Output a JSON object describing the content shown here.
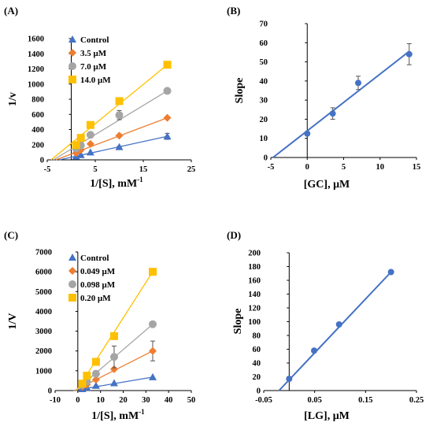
{
  "colors": {
    "control": "#4472C4",
    "orange": "#ED7D31",
    "gray": "#A5A5A5",
    "gold": "#FFC000",
    "slope": "#4472C4",
    "axis": "#000000"
  },
  "chart_data": [
    {
      "panel": "(A)",
      "type": "line",
      "xlabel": "1/[S], mM",
      "xlabel_sup": "-1",
      "ylabel": "1/v",
      "xlim": [
        -5,
        25
      ],
      "ylim": [
        0,
        1600
      ],
      "xticks": [
        -5,
        5,
        15,
        25
      ],
      "xtick_labels": [
        "-5",
        "5",
        "15",
        "25"
      ],
      "yticks": [
        0,
        200,
        400,
        600,
        800,
        1000,
        1200,
        1400,
        1600
      ],
      "ytick_labels": [
        "0",
        "200",
        "400",
        "600",
        "800",
        "1000",
        "1200",
        "1400",
        "1600"
      ],
      "legend_position": "top-left",
      "series": [
        {
          "name": "Control",
          "color": "control",
          "marker": "triangle",
          "points": [
            [
              1,
              45
            ],
            [
              2,
              65
            ],
            [
              4,
              100
            ],
            [
              10,
              170
            ],
            [
              20,
              310
            ]
          ],
          "errors": [
            0,
            0,
            0,
            10,
            40
          ],
          "line": [
            [
              -2.5,
              0
            ],
            [
              20,
              310
            ]
          ]
        },
        {
          "name": "3.5 μM",
          "color": "orange",
          "marker": "diamond",
          "points": [
            [
              1,
              90
            ],
            [
              2,
              130
            ],
            [
              4,
              210
            ],
            [
              10,
              320
            ],
            [
              20,
              555
            ]
          ],
          "errors": [
            0,
            0,
            0,
            0,
            0
          ],
          "line": [
            [
              -3.2,
              0
            ],
            [
              20,
              555
            ]
          ]
        },
        {
          "name": "7.0 μM",
          "color": "gray",
          "marker": "circle",
          "points": [
            [
              1,
              150
            ],
            [
              2,
              190
            ],
            [
              4,
              330
            ],
            [
              10,
              590
            ],
            [
              20,
              910
            ]
          ],
          "errors": [
            0,
            0,
            0,
            60,
            0
          ],
          "line": [
            [
              -3.7,
              0
            ],
            [
              20,
              910
            ]
          ]
        },
        {
          "name": "14.0 μM",
          "color": "gold",
          "marker": "square",
          "points": [
            [
              1,
              195
            ],
            [
              2,
              290
            ],
            [
              4,
              460
            ],
            [
              10,
              775
            ],
            [
              20,
              1255
            ]
          ],
          "errors": [
            0,
            0,
            0,
            0,
            0
          ],
          "line": [
            [
              -4.2,
              0
            ],
            [
              20,
              1255
            ]
          ]
        }
      ]
    },
    {
      "panel": "(B)",
      "type": "scatter",
      "xlabel": "[GC], μM",
      "ylabel": "Slope",
      "xlim": [
        -5,
        15
      ],
      "ylim": [
        0,
        70
      ],
      "xticks": [
        -5,
        0,
        5,
        10,
        15
      ],
      "xtick_labels": [
        "-5",
        "0",
        "5",
        "10",
        "15"
      ],
      "yticks": [
        0,
        10,
        20,
        30,
        40,
        50,
        60,
        70
      ],
      "ytick_labels": [
        "0",
        "10",
        "20",
        "30",
        "40",
        "50",
        "60",
        "70"
      ],
      "series": [
        {
          "color": "slope",
          "marker": "circle",
          "points": [
            [
              0,
              12.5
            ],
            [
              3.5,
              23
            ],
            [
              7,
              39
            ],
            [
              14,
              54
            ]
          ],
          "errors": [
            1,
            3,
            3.5,
            5.5
          ],
          "line": [
            [
              -4.7,
              0
            ],
            [
              14,
              55.5
            ]
          ]
        }
      ]
    },
    {
      "panel": "(C)",
      "type": "line",
      "xlabel": "1/[S], mM",
      "xlabel_sup": "-1",
      "ylabel": "1/V",
      "xlim": [
        -10,
        50
      ],
      "ylim": [
        0,
        7000
      ],
      "xticks": [
        -10,
        0,
        10,
        20,
        30,
        40,
        50
      ],
      "xtick_labels": [
        "-10",
        "0",
        "10",
        "20",
        "30",
        "40",
        "50"
      ],
      "yticks": [
        0,
        1000,
        2000,
        3000,
        4000,
        5000,
        6000,
        7000
      ],
      "ytick_labels": [
        "0",
        "1000",
        "2000",
        "3000",
        "4000",
        "5000",
        "6000",
        "7000"
      ],
      "legend_position": "top-left",
      "series": [
        {
          "name": "Control",
          "color": "control",
          "marker": "triangle",
          "points": [
            [
              2,
              80
            ],
            [
              4,
              150
            ],
            [
              8,
              250
            ],
            [
              16,
              380
            ],
            [
              33,
              680
            ]
          ],
          "errors": [
            0,
            0,
            0,
            0,
            0
          ],
          "line": [
            [
              -2,
              0
            ],
            [
              33,
              680
            ]
          ]
        },
        {
          "name": "0.049 μM",
          "color": "orange",
          "marker": "diamond",
          "points": [
            [
              2,
              200
            ],
            [
              4,
              300
            ],
            [
              8,
              550
            ],
            [
              16,
              1080
            ],
            [
              33,
              2000
            ]
          ],
          "errors": [
            0,
            0,
            0,
            0,
            500
          ],
          "line": [
            [
              -1.5,
              0
            ],
            [
              33,
              2000
            ]
          ]
        },
        {
          "name": "0.098 μM",
          "color": "gray",
          "marker": "circle",
          "points": [
            [
              2,
              280
            ],
            [
              4,
              450
            ],
            [
              8,
              850
            ],
            [
              16,
              1700
            ],
            [
              33,
              3350
            ]
          ],
          "errors": [
            0,
            0,
            0,
            550,
            0
          ],
          "line": [
            [
              -1,
              0
            ],
            [
              33,
              3350
            ]
          ]
        },
        {
          "name": "0.20 μM",
          "color": "gold",
          "marker": "square",
          "points": [
            [
              2,
              350
            ],
            [
              4,
              750
            ],
            [
              8,
              1450
            ],
            [
              16,
              2750
            ],
            [
              33,
              6000
            ]
          ],
          "errors": [
            0,
            0,
            0,
            0,
            0
          ],
          "line": [
            [
              -0.5,
              0
            ],
            [
              33,
              6000
            ]
          ]
        }
      ]
    },
    {
      "panel": "(D)",
      "type": "scatter",
      "xlabel": "[LG], μM",
      "ylabel": "Slope",
      "xlim": [
        -0.05,
        0.25
      ],
      "ylim": [
        0,
        200
      ],
      "xticks": [
        -0.05,
        0.05,
        0.15,
        0.25
      ],
      "xtick_labels": [
        "-0.05",
        "0.05",
        "0.15",
        "0.25"
      ],
      "yticks": [
        0,
        20,
        40,
        60,
        80,
        100,
        120,
        140,
        160,
        180,
        200
      ],
      "ytick_labels": [
        "0",
        "20",
        "40",
        "60",
        "80",
        "100",
        "120",
        "140",
        "160",
        "180",
        "200"
      ],
      "series": [
        {
          "color": "slope",
          "marker": "circle",
          "points": [
            [
              0,
              17
            ],
            [
              0.049,
              58
            ],
            [
              0.098,
              96
            ],
            [
              0.2,
              172
            ]
          ],
          "errors": [
            0,
            0,
            0,
            0
          ],
          "line": [
            [
              -0.02,
              0
            ],
            [
              0.2,
              172
            ]
          ]
        }
      ]
    }
  ]
}
